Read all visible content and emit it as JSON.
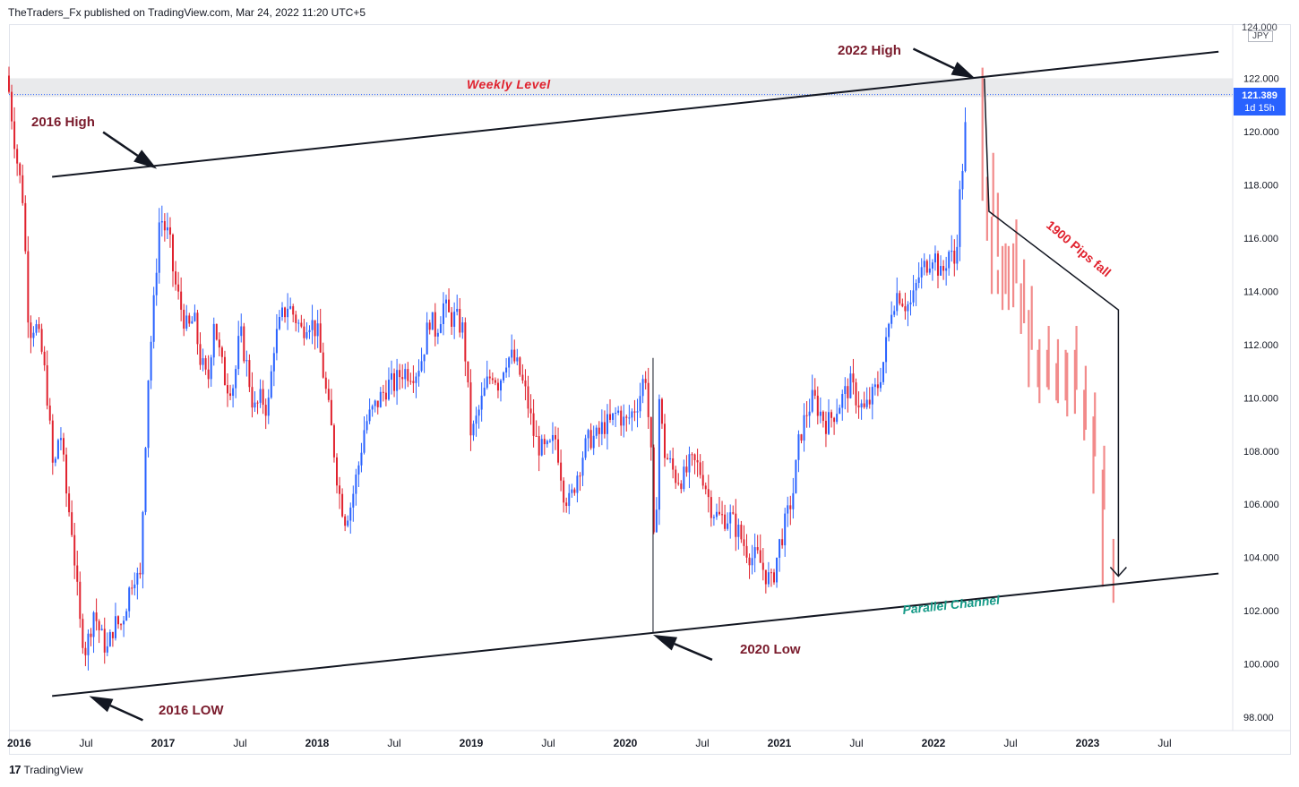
{
  "header": {
    "publisher_text": "TheTraders_Fx published on TradingView.com, Mar 24, 2022 11:20 UTC+5"
  },
  "footer": {
    "brand": "TradingView",
    "logo": "17"
  },
  "price_axis": {
    "top_label": "124.000",
    "currency": "JPY",
    "labels": [
      "122.000",
      "120.000",
      "118.000",
      "116.000",
      "114.000",
      "112.000",
      "110.000",
      "108.000",
      "106.000",
      "104.000",
      "102.000",
      "100.000",
      "98.000"
    ]
  },
  "last_price": {
    "value": "121.389",
    "countdown": "1d 15h"
  },
  "time_axis": {
    "labels": [
      "2016",
      "Jul",
      "2017",
      "Jul",
      "2018",
      "Jul",
      "2019",
      "Jul",
      "2020",
      "Jul",
      "2021",
      "Jul",
      "2022",
      "Jul",
      "2023",
      "Jul"
    ]
  },
  "colors": {
    "up": "#2962ff",
    "down": "#e0222e",
    "projection": "#f28b8b",
    "annotation": "#7a1b2c",
    "channel_label": "#159a87",
    "level_zone": "#e2e3e6"
  },
  "chart_data": {
    "type": "candlestick",
    "symbol": "USDJPY",
    "timeframe": "weekly",
    "title": "",
    "ylim": [
      97.5,
      124.0
    ],
    "xlim": [
      2016.0,
      2023.9
    ],
    "annotations": {
      "high_2016": "2016 High",
      "low_2016": "2016 LOW",
      "low_2020": "2020 Low",
      "high_2022": "2022 High",
      "weekly_level": "Weekly Level",
      "pips_fall": "1900 Pips fall",
      "parallel_channel": "Parallel Channel"
    },
    "price_path": [
      [
        2016.0,
        121.5
      ],
      [
        2016.05,
        119.0
      ],
      [
        2016.09,
        117.5
      ],
      [
        2016.13,
        112.5
      ],
      [
        2016.17,
        112.8
      ],
      [
        2016.22,
        111.5
      ],
      [
        2016.25,
        110.0
      ],
      [
        2016.29,
        107.0
      ],
      [
        2016.33,
        109.0
      ],
      [
        2016.37,
        106.5
      ],
      [
        2016.41,
        105.0
      ],
      [
        2016.46,
        101.5
      ],
      [
        2016.5,
        100.5
      ],
      [
        2016.55,
        102.0
      ],
      [
        2016.6,
        101.0
      ],
      [
        2016.64,
        100.5
      ],
      [
        2016.68,
        101.5
      ],
      [
        2016.73,
        101.5
      ],
      [
        2016.77,
        102.5
      ],
      [
        2016.81,
        103.5
      ],
      [
        2016.85,
        103.0
      ],
      [
        2016.87,
        106.0
      ],
      [
        2016.9,
        110.5
      ],
      [
        2016.94,
        113.5
      ],
      [
        2016.98,
        117.0
      ],
      [
        2017.0,
        116.5
      ],
      [
        2017.04,
        116.0
      ],
      [
        2017.07,
        114.5
      ],
      [
        2017.11,
        113.5
      ],
      [
        2017.16,
        112.5
      ],
      [
        2017.2,
        113.0
      ],
      [
        2017.24,
        111.5
      ],
      [
        2017.29,
        110.5
      ],
      [
        2017.33,
        113.0
      ],
      [
        2017.37,
        111.5
      ],
      [
        2017.41,
        110.5
      ],
      [
        2017.46,
        110.5
      ],
      [
        2017.5,
        112.5
      ],
      [
        2017.55,
        111.0
      ],
      [
        2017.59,
        109.5
      ],
      [
        2017.64,
        110.0
      ],
      [
        2017.68,
        109.5
      ],
      [
        2017.72,
        112.0
      ],
      [
        2017.77,
        113.0
      ],
      [
        2017.81,
        113.5
      ],
      [
        2017.86,
        113.0
      ],
      [
        2017.9,
        112.5
      ],
      [
        2017.94,
        113.0
      ],
      [
        2018.0,
        112.5
      ],
      [
        2018.05,
        110.5
      ],
      [
        2018.1,
        108.5
      ],
      [
        2018.14,
        106.5
      ],
      [
        2018.18,
        105.5
      ],
      [
        2018.22,
        106.0
      ],
      [
        2018.27,
        107.5
      ],
      [
        2018.31,
        109.0
      ],
      [
        2018.36,
        109.5
      ],
      [
        2018.41,
        110.0
      ],
      [
        2018.46,
        110.5
      ],
      [
        2018.5,
        110.5
      ],
      [
        2018.55,
        111.0
      ],
      [
        2018.6,
        111.0
      ],
      [
        2018.64,
        111.0
      ],
      [
        2018.68,
        111.5
      ],
      [
        2018.73,
        113.0
      ],
      [
        2018.77,
        112.5
      ],
      [
        2018.82,
        113.5
      ],
      [
        2018.86,
        113.0
      ],
      [
        2018.9,
        113.0
      ],
      [
        2018.95,
        112.5
      ],
      [
        2019.0,
        108.5
      ],
      [
        2019.05,
        109.5
      ],
      [
        2019.1,
        110.5
      ],
      [
        2019.14,
        111.0
      ],
      [
        2019.18,
        110.5
      ],
      [
        2019.22,
        111.5
      ],
      [
        2019.27,
        111.5
      ],
      [
        2019.31,
        111.0
      ],
      [
        2019.36,
        110.0
      ],
      [
        2019.41,
        108.5
      ],
      [
        2019.46,
        108.0
      ],
      [
        2019.5,
        108.0
      ],
      [
        2019.55,
        108.5
      ],
      [
        2019.6,
        106.5
      ],
      [
        2019.64,
        106.0
      ],
      [
        2019.68,
        107.0
      ],
      [
        2019.73,
        108.0
      ],
      [
        2019.77,
        108.5
      ],
      [
        2019.82,
        108.5
      ],
      [
        2019.86,
        109.0
      ],
      [
        2019.9,
        109.0
      ],
      [
        2019.95,
        109.5
      ],
      [
        2020.0,
        109.0
      ],
      [
        2020.05,
        109.5
      ],
      [
        2020.09,
        110.0
      ],
      [
        2020.13,
        111.0
      ],
      [
        2020.17,
        107.5
      ],
      [
        2020.19,
        103.5
      ],
      [
        2020.22,
        110.0
      ],
      [
        2020.25,
        108.0
      ],
      [
        2020.29,
        107.5
      ],
      [
        2020.33,
        107.0
      ],
      [
        2020.38,
        107.0
      ],
      [
        2020.42,
        107.5
      ],
      [
        2020.46,
        107.5
      ],
      [
        2020.51,
        107.0
      ],
      [
        2020.55,
        106.0
      ],
      [
        2020.6,
        105.5
      ],
      [
        2020.64,
        105.5
      ],
      [
        2020.68,
        105.5
      ],
      [
        2020.73,
        105.0
      ],
      [
        2020.77,
        104.5
      ],
      [
        2020.82,
        104.0
      ],
      [
        2020.86,
        104.0
      ],
      [
        2020.9,
        103.5
      ],
      [
        2020.95,
        103.0
      ],
      [
        2021.0,
        104.5
      ],
      [
        2021.05,
        105.5
      ],
      [
        2021.09,
        106.5
      ],
      [
        2021.13,
        108.5
      ],
      [
        2021.18,
        109.5
      ],
      [
        2021.22,
        110.0
      ],
      [
        2021.26,
        109.5
      ],
      [
        2021.31,
        109.0
      ],
      [
        2021.36,
        109.5
      ],
      [
        2021.41,
        110.0
      ],
      [
        2021.46,
        110.5
      ],
      [
        2021.5,
        110.0
      ],
      [
        2021.55,
        109.5
      ],
      [
        2021.6,
        110.0
      ],
      [
        2021.64,
        110.5
      ],
      [
        2021.68,
        111.5
      ],
      [
        2021.73,
        113.5
      ],
      [
        2021.77,
        114.0
      ],
      [
        2021.82,
        113.5
      ],
      [
        2021.86,
        113.5
      ],
      [
        2021.9,
        114.5
      ],
      [
        2021.95,
        115.0
      ],
      [
        2022.0,
        115.5
      ],
      [
        2022.05,
        114.5
      ],
      [
        2022.1,
        115.5
      ],
      [
        2022.14,
        115.0
      ],
      [
        2022.17,
        117.5
      ],
      [
        2022.2,
        119.5
      ],
      [
        2022.22,
        121.4
      ]
    ],
    "projection_path": [
      [
        2022.3,
        122.1
      ],
      [
        2022.33,
        118.0
      ],
      [
        2022.36,
        116.5
      ],
      [
        2022.4,
        114.5
      ],
      [
        2022.45,
        114.5
      ],
      [
        2022.5,
        115.5
      ],
      [
        2022.55,
        114.0
      ],
      [
        2022.6,
        113.0
      ],
      [
        2022.66,
        111.0
      ],
      [
        2022.72,
        111.5
      ],
      [
        2022.78,
        111.0
      ],
      [
        2022.84,
        110.5
      ],
      [
        2022.9,
        111.5
      ],
      [
        2022.96,
        110.0
      ],
      [
        2023.02,
        109.0
      ],
      [
        2023.08,
        107.0
      ],
      [
        2023.13,
        103.5
      ]
    ],
    "channel": {
      "lower": [
        [
          2016.28,
          98.8
        ],
        [
          2023.85,
          103.4
        ]
      ],
      "upper": [
        [
          2016.28,
          118.3
        ],
        [
          2023.85,
          123.0
        ]
      ]
    },
    "weekly_level_zone": [
      121.3,
      122.0
    ],
    "pips_fall_line": [
      [
        2022.33,
        122.0
      ],
      [
        2022.36,
        117.0
      ],
      [
        2023.2,
        113.3
      ],
      [
        2023.2,
        103.3
      ]
    ],
    "last_price": 121.389
  }
}
